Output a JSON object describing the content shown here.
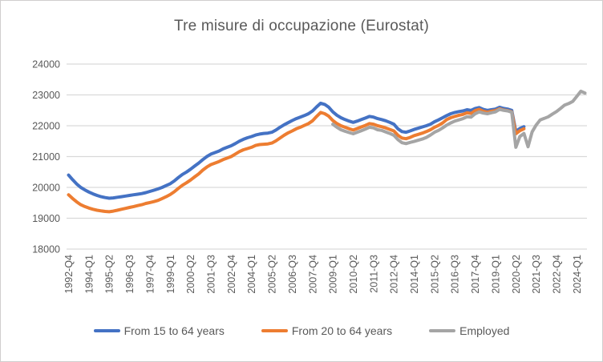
{
  "chart_data": {
    "type": "line",
    "title": "Tre misure di occupazione (Eurostat)",
    "xlabel": "",
    "ylabel": "",
    "ylim": [
      18000,
      24000
    ],
    "y_ticks": [
      18000,
      19000,
      20000,
      21000,
      22000,
      23000,
      24000
    ],
    "grid": "horizontal",
    "legend_position": "bottom",
    "x_count": 128,
    "x_tick_every": 5,
    "x_tick_labels": [
      "1992-Q4",
      "1994-Q1",
      "1995-Q2",
      "1996-Q3",
      "1997-Q4",
      "1999-Q1",
      "2000-Q2",
      "2001-Q3",
      "2002-Q4",
      "2004-Q1",
      "2005-Q2",
      "2006-Q3",
      "2007-Q4",
      "2009-Q1",
      "2010-Q2",
      "2011-Q3",
      "2012-Q4",
      "2014-Q1",
      "2015-Q2",
      "2016-Q3",
      "2017-Q4",
      "2019-Q1",
      "2020-Q2",
      "2021-Q3",
      "2022-Q4",
      "2024-Q1"
    ],
    "series": [
      {
        "name": "From 15 to 64 years",
        "color": "#4472C4",
        "start_index": 0,
        "values": [
          20400,
          20250,
          20110,
          20000,
          19920,
          19850,
          19790,
          19740,
          19700,
          19670,
          19650,
          19660,
          19680,
          19700,
          19720,
          19740,
          19760,
          19780,
          19800,
          19830,
          19870,
          19910,
          19950,
          20000,
          20060,
          20120,
          20210,
          20320,
          20420,
          20500,
          20590,
          20690,
          20790,
          20900,
          21000,
          21080,
          21130,
          21180,
          21250,
          21300,
          21350,
          21420,
          21500,
          21560,
          21610,
          21650,
          21700,
          21730,
          21750,
          21760,
          21790,
          21860,
          21950,
          22030,
          22100,
          22170,
          22230,
          22280,
          22330,
          22390,
          22480,
          22610,
          22730,
          22690,
          22600,
          22450,
          22340,
          22260,
          22200,
          22150,
          22110,
          22150,
          22200,
          22250,
          22300,
          22280,
          22230,
          22200,
          22160,
          22110,
          22050,
          21900,
          21810,
          21790,
          21830,
          21880,
          21920,
          21960,
          22000,
          22050,
          22130,
          22190,
          22260,
          22330,
          22390,
          22430,
          22460,
          22480,
          22520,
          22500,
          22560,
          22590,
          22530,
          22500,
          22520,
          22540,
          22600,
          22560,
          22540,
          22500,
          21810,
          21910,
          21970
        ]
      },
      {
        "name": "From 20 to 64 years",
        "color": "#ED7D31",
        "start_index": 0,
        "values": [
          19760,
          19640,
          19530,
          19440,
          19380,
          19330,
          19290,
          19260,
          19240,
          19220,
          19210,
          19230,
          19260,
          19290,
          19320,
          19350,
          19380,
          19410,
          19440,
          19480,
          19510,
          19540,
          19580,
          19640,
          19700,
          19770,
          19860,
          19970,
          20070,
          20150,
          20240,
          20340,
          20440,
          20560,
          20660,
          20740,
          20790,
          20840,
          20900,
          20950,
          21000,
          21080,
          21160,
          21220,
          21260,
          21300,
          21360,
          21390,
          21400,
          21410,
          21440,
          21510,
          21600,
          21690,
          21770,
          21830,
          21900,
          21950,
          22010,
          22070,
          22160,
          22300,
          22430,
          22390,
          22310,
          22170,
          22070,
          22000,
          21950,
          21900,
          21860,
          21910,
          21960,
          22010,
          22070,
          22050,
          22000,
          21970,
          21930,
          21880,
          21830,
          21690,
          21600,
          21580,
          21620,
          21680,
          21720,
          21760,
          21810,
          21870,
          21950,
          22010,
          22090,
          22200,
          22260,
          22300,
          22340,
          22370,
          22420,
          22400,
          22490,
          22530,
          22470,
          22440,
          22470,
          22490,
          22550,
          22510,
          22490,
          22450,
          21740,
          21840,
          21900
        ]
      },
      {
        "name": "Employed",
        "color": "#A5A5A5",
        "start_index": 65,
        "values": [
          22050,
          21950,
          21870,
          21820,
          21780,
          21740,
          21790,
          21840,
          21890,
          21950,
          21930,
          21870,
          21850,
          21800,
          21750,
          21690,
          21550,
          21450,
          21420,
          21460,
          21490,
          21530,
          21570,
          21620,
          21700,
          21790,
          21850,
          21930,
          22020,
          22090,
          22150,
          22190,
          22230,
          22290,
          22280,
          22390,
          22450,
          22410,
          22390,
          22420,
          22450,
          22530,
          22500,
          22480,
          22440,
          21300,
          21650,
          21750,
          21320,
          21800,
          22020,
          22190,
          22240,
          22290,
          22380,
          22460,
          22560,
          22670,
          22720,
          22790,
          22950,
          23120,
          23060
        ]
      }
    ]
  },
  "colors": {
    "grid": "#D9D9D9",
    "text": "#595959",
    "border": "#D0CECE",
    "background": "#FFFFFF"
  }
}
